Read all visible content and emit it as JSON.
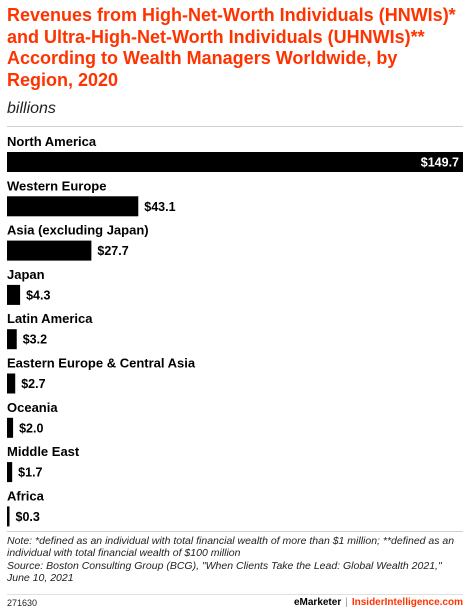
{
  "chart_data": {
    "type": "bar",
    "orientation": "horizontal",
    "title": "Revenues from High-Net-Worth Individuals (HNWIs)* and Ultra-High-Net-Worth Individuals (UHNWIs)** According to Wealth Managers Worldwide, by Region, 2020",
    "subtitle": "billions",
    "categories": [
      "North America",
      "Western Europe",
      "Asia (excluding Japan)",
      "Japan",
      "Latin America",
      "Eastern Europe & Central Asia",
      "Oceania",
      "Middle East",
      "Africa"
    ],
    "values": [
      149.7,
      43.1,
      27.7,
      4.3,
      3.2,
      2.7,
      2.0,
      1.7,
      0.3
    ],
    "value_labels": [
      "$149.7",
      "$43.1",
      "$27.7",
      "$4.3",
      "$3.2",
      "$2.7",
      "$2.0",
      "$1.7",
      "$0.3"
    ],
    "bar_color": "#000000",
    "xlim": [
      0,
      149.7
    ],
    "grid": false,
    "legend": "none"
  },
  "notes": {
    "note": "Note: *defined as an individual with total financial wealth of more than $1 million; **defined as an individual with total financial wealth of $100 million",
    "source": "Source: Boston Consulting Group (BCG), \"When Clients Take the Lead: Global Wealth 2021,\" June 10, 2021"
  },
  "footer": {
    "id": "271630",
    "brand_left": "eMarketer",
    "separator": "|",
    "brand_right": "InsiderIntelligence.com"
  },
  "colors": {
    "accent": "#ff3300",
    "bar": "#000000"
  }
}
